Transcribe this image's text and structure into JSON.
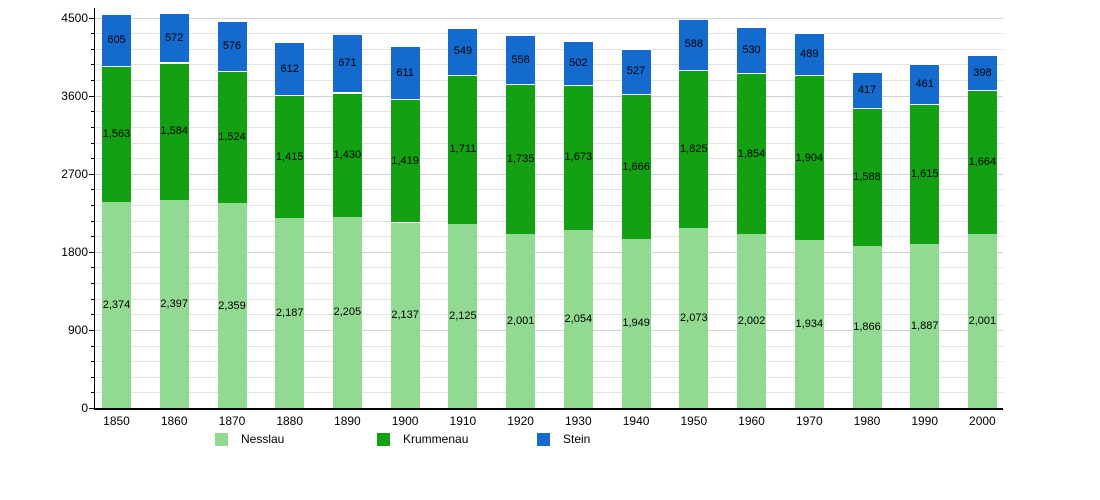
{
  "chart_data": {
    "type": "bar",
    "stacked": true,
    "title": "",
    "xlabel": "",
    "ylabel": "",
    "categories": [
      "1850",
      "1860",
      "1870",
      "1880",
      "1890",
      "1900",
      "1910",
      "1920",
      "1930",
      "1940",
      "1950",
      "1960",
      "1970",
      "1980",
      "1990",
      "2000"
    ],
    "series": [
      {
        "name": "Nesslau",
        "color": "#92da92",
        "values": [
          2374,
          2397,
          2359,
          2187,
          2205,
          2137,
          2125,
          2001,
          2054,
          1949,
          2073,
          2002,
          1934,
          1866,
          1887,
          2001
        ]
      },
      {
        "name": "Krummenau",
        "color": "#13a113",
        "values": [
          1563,
          1584,
          1524,
          1415,
          1430,
          1419,
          1711,
          1735,
          1673,
          1666,
          1825,
          1854,
          1904,
          1588,
          1615,
          1664
        ]
      },
      {
        "name": "Stein",
        "color": "#146bcd",
        "values": [
          605,
          572,
          576,
          612,
          671,
          611,
          549,
          558,
          502,
          527,
          588,
          530,
          489,
          417,
          461,
          398
        ]
      }
    ],
    "ylim": [
      0,
      4580
    ],
    "yticks": [
      0,
      900,
      1800,
      2700,
      3600,
      4500
    ],
    "minor_step": 180,
    "grid": true,
    "legend_position": "bottom",
    "value_label_format": "thousands-comma"
  }
}
